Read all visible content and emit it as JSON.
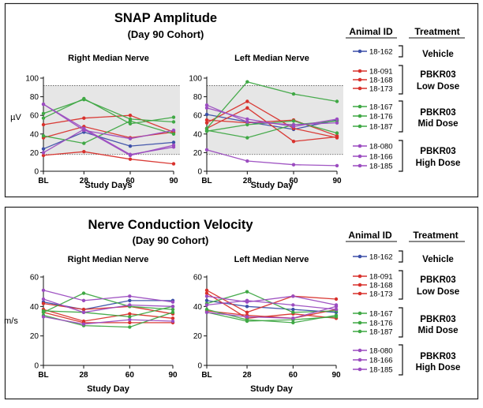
{
  "colors": {
    "vehicle": "#3b4fa8",
    "low": "#d8312c",
    "mid": "#3fa844",
    "high": "#9b4cc0",
    "shade": "#e6e6e6",
    "border": "#222222"
  },
  "legend_header": {
    "animal_id": "Animal ID",
    "treatment": "Treatment"
  },
  "groups": [
    {
      "key": "vehicle",
      "ids": [
        "18-162"
      ],
      "label": [
        "Vehicle"
      ]
    },
    {
      "key": "low",
      "ids": [
        "18-091",
        "18-168",
        "18-173"
      ],
      "label": [
        "PBKR03",
        "Low Dose"
      ]
    },
    {
      "key": "mid",
      "ids": [
        "18-167",
        "18-176",
        "18-187"
      ],
      "label": [
        "PBKR03",
        "Mid Dose"
      ]
    },
    {
      "key": "high",
      "ids": [
        "18-080",
        "18-166",
        "18-185"
      ],
      "label": [
        "PBKR03",
        "High Dose"
      ]
    }
  ],
  "chart_data": [
    {
      "type": "line",
      "title": "SNAP Amplitude",
      "subtitle": "(Day 90 Cohort)",
      "ylabel": "µV",
      "ylim": [
        0,
        100
      ],
      "yticks": [
        0,
        20,
        40,
        60,
        80,
        100
      ],
      "x": [
        0,
        28,
        60,
        90
      ],
      "xticklabels": [
        "BL",
        "28",
        "60",
        "90"
      ],
      "xlim": [
        0,
        90
      ],
      "reference_band": [
        18,
        92
      ],
      "panels": [
        {
          "title": "Right Median Nerve",
          "xlabel": "Study Days",
          "series": [
            {
              "name": "18-162",
              "group": "vehicle",
              "values": [
                24,
                42,
                27,
                31
              ]
            },
            {
              "name": "18-091",
              "group": "low",
              "values": [
                17,
                21,
                13,
                8
              ]
            },
            {
              "name": "18-168",
              "group": "low",
              "values": [
                50,
                57,
                60,
                42
              ]
            },
            {
              "name": "18-173",
              "group": "low",
              "values": [
                36,
                48,
                36,
                42
              ]
            },
            {
              "name": "18-167",
              "group": "mid",
              "values": [
                57,
                78,
                51,
                58
              ]
            },
            {
              "name": "18-176",
              "group": "mid",
              "values": [
                62,
                77,
                56,
                53
              ]
            },
            {
              "name": "18-187",
              "group": "mid",
              "values": [
                38,
                30,
                54,
                40
              ]
            },
            {
              "name": "18-080",
              "group": "high",
              "values": [
                72,
                44,
                35,
                44
              ]
            },
            {
              "name": "18-166",
              "group": "high",
              "values": [
                72,
                46,
                18,
                26
              ]
            },
            {
              "name": "18-185",
              "group": "high",
              "values": [
                20,
                45,
                17,
                28
              ]
            }
          ]
        },
        {
          "title": "Left Median Nerve",
          "xlabel": "Study Day",
          "series": [
            {
              "name": "18-162",
              "group": "vehicle",
              "values": [
                61,
                53,
                45,
                55
              ]
            },
            {
              "name": "18-091",
              "group": "low",
              "values": [
                52,
                75,
                46,
                36
              ]
            },
            {
              "name": "18-168",
              "group": "low",
              "values": [
                46,
                68,
                32,
                37
              ]
            },
            {
              "name": "18-173",
              "group": "low",
              "values": [
                55,
                52,
                55,
                38
              ]
            },
            {
              "name": "18-167",
              "group": "mid",
              "values": [
                46,
                96,
                83,
                75
              ]
            },
            {
              "name": "18-176",
              "group": "mid",
              "values": [
                43,
                50,
                54,
                41
              ]
            },
            {
              "name": "18-187",
              "group": "mid",
              "values": [
                44,
                36,
                50,
                54
              ]
            },
            {
              "name": "18-080",
              "group": "high",
              "values": [
                71,
                53,
                50,
                52
              ]
            },
            {
              "name": "18-166",
              "group": "high",
              "values": [
                68,
                56,
                48,
                56
              ]
            },
            {
              "name": "18-185",
              "group": "high",
              "values": [
                23,
                11,
                7,
                6
              ]
            }
          ]
        }
      ]
    },
    {
      "type": "line",
      "title": "Nerve Conduction Velocity",
      "subtitle": "(Day 90 Cohort)",
      "ylabel": "m/s",
      "ylim": [
        0,
        60
      ],
      "yticks": [
        0,
        20,
        40,
        60
      ],
      "x": [
        0,
        28,
        60,
        90
      ],
      "xticklabels": [
        "BL",
        "28",
        "60",
        "90"
      ],
      "xlim": [
        0,
        90
      ],
      "panels": [
        {
          "title": "Right Median Nerve",
          "xlabel": "Study Day",
          "series": [
            {
              "name": "18-162",
              "group": "vehicle",
              "values": [
                43,
                38,
                44,
                44
              ]
            },
            {
              "name": "18-091",
              "group": "low",
              "values": [
                36,
                29,
                29,
                29
              ]
            },
            {
              "name": "18-168",
              "group": "low",
              "values": [
                38,
                30,
                35,
                32
              ]
            },
            {
              "name": "18-173",
              "group": "low",
              "values": [
                42,
                38,
                40,
                35
              ]
            },
            {
              "name": "18-167",
              "group": "mid",
              "values": [
                36,
                49,
                40,
                38
              ]
            },
            {
              "name": "18-176",
              "group": "mid",
              "values": [
                34,
                27,
                26,
                36
              ]
            },
            {
              "name": "18-187",
              "group": "mid",
              "values": [
                37,
                36,
                33,
                40
              ]
            },
            {
              "name": "18-080",
              "group": "high",
              "values": [
                51,
                44,
                47,
                43
              ]
            },
            {
              "name": "18-166",
              "group": "high",
              "values": [
                45,
                36,
                41,
                40
              ]
            },
            {
              "name": "18-185",
              "group": "high",
              "values": [
                33,
                28,
                31,
                30
              ]
            }
          ]
        },
        {
          "title": "Left Median Nerve",
          "xlabel": "Study Day",
          "series": [
            {
              "name": "18-162",
              "group": "vehicle",
              "values": [
                44,
                40,
                38,
                36
              ]
            },
            {
              "name": "18-091",
              "group": "low",
              "values": [
                51,
                36,
                47,
                45
              ]
            },
            {
              "name": "18-168",
              "group": "low",
              "values": [
                49,
                32,
                35,
                32
              ]
            },
            {
              "name": "18-173",
              "group": "low",
              "values": [
                37,
                34,
                32,
                38
              ]
            },
            {
              "name": "18-167",
              "group": "mid",
              "values": [
                42,
                50,
                36,
                37
              ]
            },
            {
              "name": "18-176",
              "group": "mid",
              "values": [
                38,
                31,
                29,
                34
              ]
            },
            {
              "name": "18-187",
              "group": "mid",
              "values": [
                36,
                30,
                31,
                33
              ]
            },
            {
              "name": "18-080",
              "group": "high",
              "values": [
                47,
                43,
                47,
                41
              ]
            },
            {
              "name": "18-166",
              "group": "high",
              "values": [
                41,
                44,
                41,
                38
              ]
            },
            {
              "name": "18-185",
              "group": "high",
              "values": [
                36,
                33,
                32,
                40
              ]
            }
          ]
        }
      ]
    }
  ]
}
